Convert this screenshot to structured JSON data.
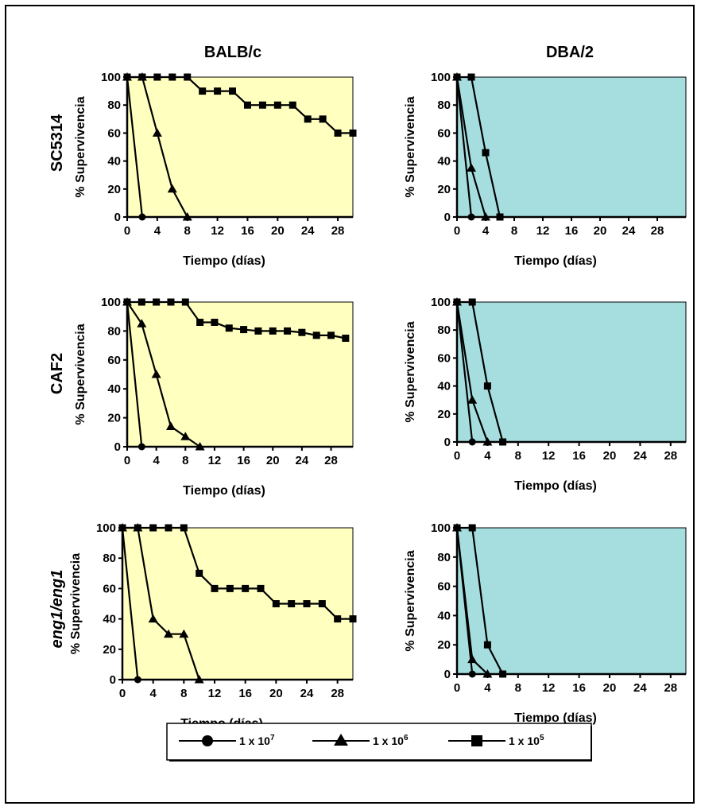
{
  "columns": [
    "BALB/c",
    "DBA/2"
  ],
  "rows": [
    {
      "label": "SC5314",
      "italic": false
    },
    {
      "label": "CAF2",
      "italic": false
    },
    {
      "label": "eng1/eng1",
      "italic": true
    }
  ],
  "colors": {
    "balbc_background": "#ffffc0",
    "dba2_background": "#a6dedf",
    "line": "#000000"
  },
  "legend": [
    {
      "marker": "circle",
      "base": "1 x 10",
      "exp": "7"
    },
    {
      "marker": "triangle",
      "base": "1 x 10",
      "exp": "6"
    },
    {
      "marker": "square",
      "base": "1 x 10",
      "exp": "5"
    }
  ],
  "chart_data": [
    {
      "type": "line",
      "row": "SC5314",
      "column": "BALB/c",
      "xlabel": "Tiempo (días)",
      "ylabel": "% Supervivencia",
      "xlim": [
        0,
        30
      ],
      "ylim": [
        0,
        100
      ],
      "xticks": [
        0,
        4,
        8,
        12,
        16,
        20,
        24,
        28
      ],
      "yticks": [
        0,
        20,
        40,
        60,
        80,
        100
      ],
      "series": [
        {
          "marker": "circle",
          "x": [
            0,
            2
          ],
          "y": [
            100,
            0
          ]
        },
        {
          "marker": "triangle",
          "x": [
            0,
            2,
            4,
            6,
            8
          ],
          "y": [
            100,
            100,
            60,
            20,
            0
          ]
        },
        {
          "marker": "square",
          "x": [
            0,
            2,
            4,
            6,
            8,
            10,
            12,
            14,
            16,
            18,
            20,
            22,
            24,
            26,
            28,
            30
          ],
          "y": [
            100,
            100,
            100,
            100,
            100,
            90,
            90,
            90,
            80,
            80,
            80,
            80,
            70,
            70,
            60,
            60
          ]
        }
      ]
    },
    {
      "type": "line",
      "row": "SC5314",
      "column": "DBA/2",
      "xlabel": "Tiempo (días)",
      "ylabel": "% Supervivencia",
      "xlim": [
        0,
        32
      ],
      "ylim": [
        0,
        100
      ],
      "xticks": [
        0,
        4,
        8,
        12,
        16,
        20,
        24,
        28
      ],
      "yticks": [
        0,
        20,
        40,
        60,
        80,
        100
      ],
      "series": [
        {
          "marker": "circle",
          "x": [
            0,
            2
          ],
          "y": [
            100,
            0
          ]
        },
        {
          "marker": "triangle",
          "x": [
            0,
            2,
            4
          ],
          "y": [
            100,
            35,
            0
          ]
        },
        {
          "marker": "square",
          "x": [
            0,
            2,
            4,
            6
          ],
          "y": [
            100,
            100,
            46,
            0
          ]
        }
      ]
    },
    {
      "type": "line",
      "row": "CAF2",
      "column": "BALB/c",
      "xlabel": "Tiempo (días)",
      "ylabel": "% Supervivencia",
      "xlim": [
        0,
        31
      ],
      "ylim": [
        0,
        100
      ],
      "xticks": [
        0,
        4,
        8,
        12,
        16,
        20,
        24,
        28
      ],
      "yticks": [
        0,
        20,
        40,
        60,
        80,
        100
      ],
      "series": [
        {
          "marker": "circle",
          "x": [
            0,
            2
          ],
          "y": [
            100,
            0
          ]
        },
        {
          "marker": "triangle",
          "x": [
            0,
            2,
            4,
            6,
            8,
            10
          ],
          "y": [
            100,
            85,
            50,
            14,
            7,
            0
          ]
        },
        {
          "marker": "square",
          "x": [
            0,
            2,
            4,
            6,
            8,
            10,
            12,
            14,
            16,
            18,
            20,
            22,
            24,
            26,
            28,
            30
          ],
          "y": [
            100,
            100,
            100,
            100,
            100,
            86,
            86,
            82,
            81,
            80,
            80,
            80,
            79,
            77,
            77,
            75
          ]
        }
      ]
    },
    {
      "type": "line",
      "row": "CAF2",
      "column": "DBA/2",
      "xlabel": "Tiempo (días)",
      "ylabel": "% Supervivencia",
      "xlim": [
        0,
        30
      ],
      "ylim": [
        0,
        100
      ],
      "xticks": [
        0,
        4,
        8,
        12,
        16,
        20,
        24,
        28
      ],
      "yticks": [
        0,
        20,
        40,
        60,
        80,
        100
      ],
      "series": [
        {
          "marker": "circle",
          "x": [
            0,
            2
          ],
          "y": [
            100,
            0
          ]
        },
        {
          "marker": "triangle",
          "x": [
            0,
            2,
            4
          ],
          "y": [
            100,
            30,
            0
          ]
        },
        {
          "marker": "square",
          "x": [
            0,
            2,
            4,
            6
          ],
          "y": [
            100,
            100,
            40,
            0
          ]
        }
      ]
    },
    {
      "type": "line",
      "row": "eng1/eng1",
      "column": "BALB/c",
      "xlabel": "Tiempo (días)",
      "ylabel": "% Supervivencia",
      "xlim": [
        0,
        30
      ],
      "ylim": [
        0,
        100
      ],
      "xticks": [
        0,
        4,
        8,
        12,
        16,
        20,
        24,
        28
      ],
      "yticks": [
        0,
        20,
        40,
        60,
        80,
        100
      ],
      "series": [
        {
          "marker": "circle",
          "x": [
            0,
            2
          ],
          "y": [
            100,
            0
          ]
        },
        {
          "marker": "triangle",
          "x": [
            0,
            2,
            4,
            6,
            8,
            10
          ],
          "y": [
            100,
            100,
            40,
            30,
            30,
            0
          ]
        },
        {
          "marker": "square",
          "x": [
            0,
            2,
            4,
            6,
            8,
            10,
            12,
            14,
            16,
            18,
            20,
            22,
            24,
            26,
            28,
            30
          ],
          "y": [
            100,
            100,
            100,
            100,
            100,
            70,
            60,
            60,
            60,
            60,
            50,
            50,
            50,
            50,
            40,
            40
          ]
        }
      ]
    },
    {
      "type": "line",
      "row": "eng1/eng1",
      "column": "DBA/2",
      "xlabel": "Tiempo (días)",
      "ylabel": "% Supervivencia",
      "xlim": [
        0,
        30
      ],
      "ylim": [
        0,
        100
      ],
      "xticks": [
        0,
        4,
        8,
        12,
        16,
        20,
        24,
        28
      ],
      "yticks": [
        0,
        20,
        40,
        60,
        80,
        100
      ],
      "series": [
        {
          "marker": "circle",
          "x": [
            0,
            2
          ],
          "y": [
            100,
            0
          ]
        },
        {
          "marker": "triangle",
          "x": [
            0,
            2,
            4
          ],
          "y": [
            100,
            10,
            0
          ]
        },
        {
          "marker": "square",
          "x": [
            0,
            2,
            4,
            6
          ],
          "y": [
            100,
            100,
            20,
            0
          ]
        }
      ]
    }
  ]
}
